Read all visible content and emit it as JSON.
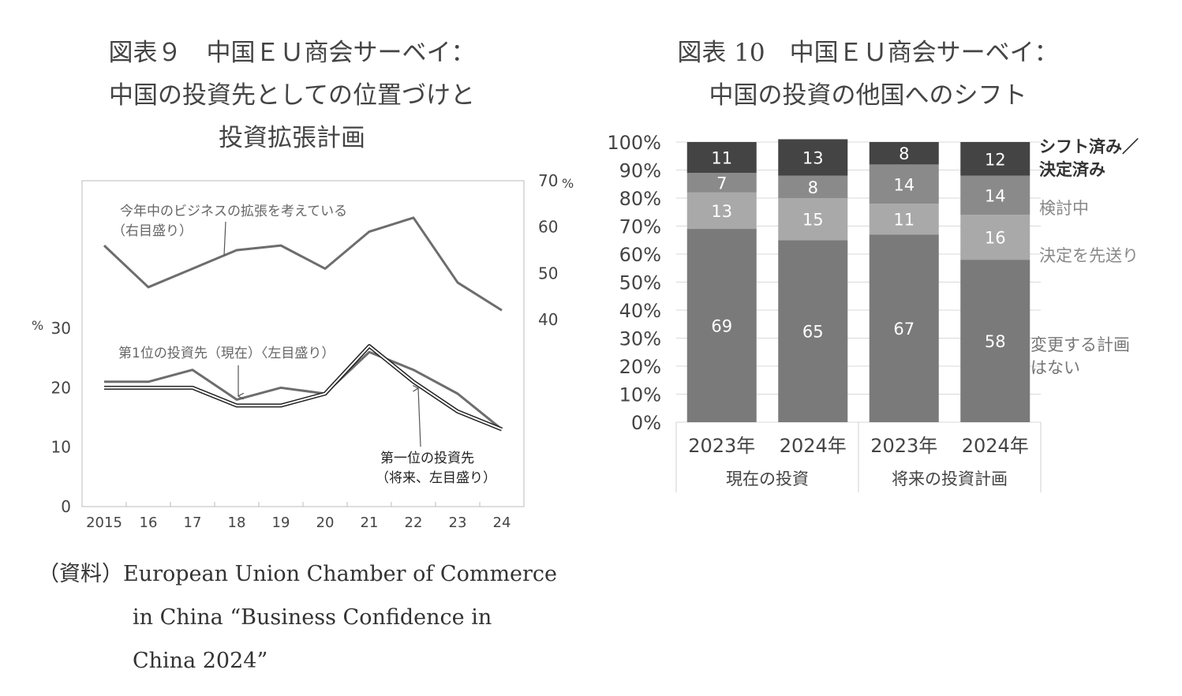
{
  "figure9": {
    "title_lines": [
      "図表９　中国ＥＵ商会サーベイ：",
      "中国の投資先としての位置づけと",
      "投資拡張計画"
    ],
    "source_lines": [
      "（資料）European Union Chamber of Commerce",
      "in China “Business Confidence in",
      "China 2024”"
    ],
    "annotations": {
      "expansion_line1": "今年中のビジネスの拡張を考えている",
      "expansion_line2": "（右目盛り）",
      "current_label": "第1位の投資先（現在）〈左目盛り）",
      "future_line1": "第一位の投資先",
      "future_line2": "（将来、左目盛り）"
    },
    "left_axis_unit": "%",
    "right_axis_unit": "%"
  },
  "figure10": {
    "title_lines": [
      "図表 10　中国ＥＵ商会サーベイ：",
      "中国の投資の他国へのシフト"
    ]
  },
  "colors": {
    "line_gray": "#6d6d6d",
    "seg_none": "#7a7a7a",
    "seg_postpone": "#a9a9a9",
    "seg_consider": "#8a8a8a",
    "seg_shifted": "#444444"
  },
  "chart_data": [
    {
      "type": "line",
      "x": [
        "2015",
        "16",
        "17",
        "18",
        "19",
        "20",
        "21",
        "22",
        "23",
        "24"
      ],
      "left_ticks": [
        "0",
        "10",
        "20",
        "30"
      ],
      "right_ticks": [
        "40",
        "50",
        "60",
        "70"
      ],
      "ylim_left": [
        0,
        30
      ],
      "ylim_right": [
        40,
        70
      ],
      "grid": false,
      "series": [
        {
          "name": "今年中のビジネスの拡張を考えている",
          "axis": "right",
          "values": [
            56,
            47,
            51,
            55,
            56,
            51,
            59,
            62,
            48,
            42
          ]
        },
        {
          "name": "第1位の投資先（現在）",
          "axis": "left",
          "values": [
            21,
            21,
            23,
            18,
            20,
            19,
            26,
            23,
            19,
            13
          ]
        },
        {
          "name": "第一位の投資先（将来）",
          "axis": "left",
          "values": [
            20,
            20,
            20,
            17,
            17,
            19,
            27,
            21,
            16,
            13
          ]
        }
      ]
    },
    {
      "type": "bar",
      "stacked": true,
      "categories": [
        "2023年",
        "2024年",
        "2023年",
        "2024年"
      ],
      "groups": [
        {
          "label": "現在の投資",
          "span": 2
        },
        {
          "label": "将来の投資計画",
          "span": 2
        }
      ],
      "y_ticks": [
        "0%",
        "10%",
        "20%",
        "30%",
        "40%",
        "50%",
        "60%",
        "70%",
        "80%",
        "90%",
        "100%"
      ],
      "ylim": [
        0,
        100
      ],
      "series": [
        {
          "name": "変更する計画はない",
          "values": [
            69,
            65,
            67,
            58
          ]
        },
        {
          "name": "決定を先送り",
          "values": [
            13,
            15,
            11,
            16
          ]
        },
        {
          "name": "検討中",
          "values": [
            7,
            8,
            14,
            14
          ]
        },
        {
          "name": "シフト済み／決定済み",
          "values": [
            11,
            13,
            8,
            12
          ]
        }
      ],
      "legend_lines": {
        "shifted": [
          "シフト済み／",
          "決定済み"
        ],
        "consider": [
          "検討中"
        ],
        "postpone": [
          "決定を先送り"
        ],
        "none": [
          "変更する計画",
          "はない"
        ]
      }
    }
  ]
}
